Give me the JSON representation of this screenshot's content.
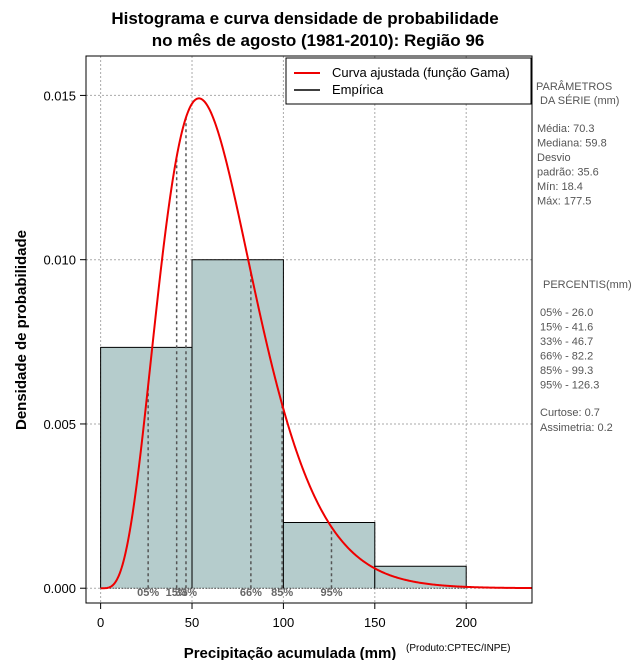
{
  "chart_data": {
    "type": "bar",
    "title_line1": "Histograma e curva densidade de probabilidade",
    "title_line2": "no mês de agosto (1981-2010): Região 96",
    "xlabel": "Precipitação acumulada (mm)",
    "ylabel": "Densidade de probabilidade",
    "credit": "(Produto:CPTEC/INPE)",
    "xlim": [
      -8,
      236
    ],
    "ylim": [
      -0.00045,
      0.0162
    ],
    "x_ticks": [
      0,
      50,
      100,
      150,
      200
    ],
    "y_ticks": [
      0.0,
      0.005,
      0.01,
      0.015
    ],
    "y_tick_labels": [
      "0.000",
      "0.005",
      "0.010",
      "0.015"
    ],
    "grid": true,
    "bins": [
      {
        "from": 0,
        "to": 50,
        "density": 0.00733
      },
      {
        "from": 50,
        "to": 100,
        "density": 0.01
      },
      {
        "from": 100,
        "to": 150,
        "density": 0.002
      },
      {
        "from": 150,
        "to": 200,
        "density": 0.00067
      }
    ],
    "bar_color": "#b5cccc",
    "gamma_fit": {
      "shape": 5.2,
      "scale": 12.8,
      "color": "#ee0000"
    },
    "percentiles": [
      {
        "label": "05%",
        "value": 26.0
      },
      {
        "label": "15%",
        "value": 41.6
      },
      {
        "label": "33%",
        "value": 46.7
      },
      {
        "label": "66%",
        "value": 82.2
      },
      {
        "label": "85%",
        "value": 99.3
      },
      {
        "label": "95%",
        "value": 126.3
      }
    ],
    "legend": {
      "position": "top-right",
      "entries": [
        {
          "label": "Curva ajustada (função Gama)",
          "color": "#ee0000"
        },
        {
          "label": "Empírica",
          "color": "#000000"
        }
      ]
    }
  },
  "side_panel": {
    "params_header_1": "PARÂMETROS",
    "params_header_2": "DA SÉRIE (mm)",
    "stats": [
      "Média:  70.3",
      "Mediana:  59.8",
      "Desvio",
      "padrão:  35.6",
      "Mín:  18.4",
      "Máx:  177.5"
    ],
    "percentis_header": "PERCENTIS(mm)",
    "percentis": [
      "05% -  26.0",
      "15% -  41.6",
      "33% -  46.7",
      "66% -  82.2",
      "85% -  99.3",
      "95% -  126.3"
    ],
    "extra": [
      "Curtose:  0.7",
      "Assimetria:  0.2"
    ]
  }
}
